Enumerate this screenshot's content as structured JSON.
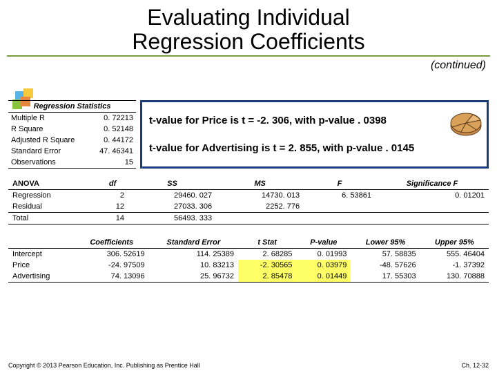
{
  "title_line1": "Evaluating Individual",
  "title_line2": "Regression Coefficients",
  "continued": "(continued)",
  "stats": {
    "header": "Regression Statistics",
    "rows": [
      {
        "label": "Multiple R",
        "value": "0. 72213"
      },
      {
        "label": "R Square",
        "value": "0. 52148"
      },
      {
        "label": "Adjusted R Square",
        "value": "0. 44172"
      },
      {
        "label": "Standard Error",
        "value": "47. 46341"
      },
      {
        "label": "Observations",
        "value": "15"
      }
    ]
  },
  "callout": {
    "price": "t-value for Price is  t = -2. 306, with p-value . 0398",
    "adv": "t-value for Advertising is t = 2. 855, with p-value . 0145"
  },
  "anova": {
    "title": "ANOVA",
    "headers": [
      "df",
      "SS",
      "MS",
      "F",
      "Significance F"
    ],
    "rows": [
      {
        "label": "Regression",
        "cells": [
          "2",
          "29460. 027",
          "14730. 013",
          "6. 53861",
          "0. 01201"
        ]
      },
      {
        "label": "Residual",
        "cells": [
          "12",
          "27033. 306",
          "2252. 776",
          "",
          ""
        ]
      },
      {
        "label": "Total",
        "cells": [
          "14",
          "56493. 333",
          "",
          "",
          ""
        ]
      }
    ]
  },
  "coef": {
    "headers": [
      "Coefficients",
      "Standard Error",
      "t Stat",
      "P-value",
      "Lower 95%",
      "Upper 95%"
    ],
    "rows": [
      {
        "label": "Intercept",
        "cells": [
          "306. 52619",
          "114. 25389",
          "2. 68285",
          "0. 01993",
          "57. 58835",
          "555. 46404"
        ],
        "hl": []
      },
      {
        "label": "Price",
        "cells": [
          "-24. 97509",
          "10. 83213",
          "-2. 30565",
          "0. 03979",
          "-48. 57626",
          "-1. 37392"
        ],
        "hl": [
          2,
          3
        ]
      },
      {
        "label": "Advertising",
        "cells": [
          "74. 13096",
          "25. 96732",
          "2. 85478",
          "0. 01449",
          "17. 55303",
          "130. 70888"
        ],
        "hl": [
          2,
          3
        ]
      }
    ]
  },
  "footer": {
    "left": "Copyright © 2013 Pearson Education, Inc. Publishing as Prentice Hall",
    "right": "Ch. 12-32"
  },
  "colors": {
    "rule": "#7a9b3e",
    "box": "#1a3d7a",
    "highlight": "#ffff66"
  }
}
